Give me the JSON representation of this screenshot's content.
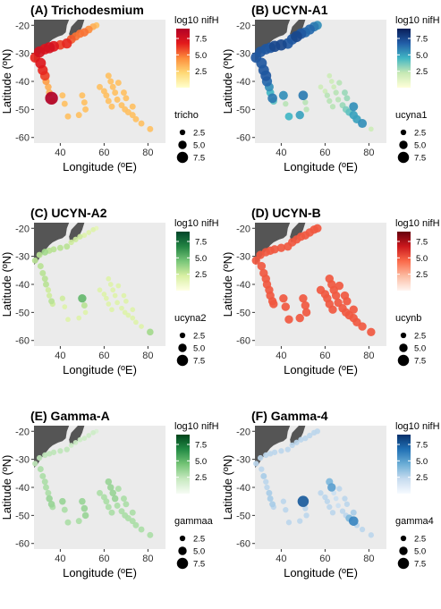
{
  "chart_data": {
    "type": "scatter",
    "xlim": [
      28,
      88
    ],
    "ylim": [
      -62,
      -18
    ],
    "x_ticks": [
      40,
      60,
      80
    ],
    "y_ticks": [
      -20,
      -30,
      -40,
      -50,
      -60
    ],
    "xlabel": "Longitude (ºE)",
    "ylabel": "Latitude (ºN)",
    "background": "#EBEBEB",
    "land_color": "#555555",
    "grid": false,
    "color_legend": {
      "title": "log10 nifH",
      "ticks": [
        "7.5",
        "5.0",
        "2.5"
      ],
      "range": [
        0,
        9
      ]
    },
    "size_legend": {
      "ticks": [
        "2.5",
        "5.0",
        "7.5"
      ]
    },
    "stations": [
      [
        28.5,
        -31.5
      ],
      [
        30.5,
        -29.5
      ],
      [
        33,
        -28.5
      ],
      [
        35,
        -28
      ],
      [
        37,
        -27.5
      ],
      [
        40,
        -27
      ],
      [
        43,
        -26.5
      ],
      [
        45,
        -25
      ],
      [
        47,
        -24
      ],
      [
        49,
        -23
      ],
      [
        51,
        -22.5
      ],
      [
        53,
        -21.5
      ],
      [
        55,
        -20.5
      ],
      [
        56.5,
        -20
      ],
      [
        31,
        -33.5
      ],
      [
        32,
        -36
      ],
      [
        33,
        -38
      ],
      [
        33.5,
        -40
      ],
      [
        34.5,
        -42
      ],
      [
        35,
        -44
      ],
      [
        36,
        -46
      ],
      [
        36.5,
        -47
      ],
      [
        41,
        -45
      ],
      [
        42,
        -48
      ],
      [
        43.5,
        -52.5
      ],
      [
        50,
        -45
      ],
      [
        51,
        -47.5
      ],
      [
        51.5,
        -50
      ],
      [
        48.5,
        -52
      ],
      [
        62,
        -38
      ],
      [
        63,
        -40
      ],
      [
        64,
        -42
      ],
      [
        65,
        -44
      ],
      [
        66,
        -46.5
      ],
      [
        68,
        -48.5
      ],
      [
        69.5,
        -50
      ],
      [
        71,
        -51
      ],
      [
        73,
        -52
      ],
      [
        74.5,
        -53.5
      ],
      [
        77,
        -55
      ],
      [
        81,
        -57
      ],
      [
        61,
        -45
      ],
      [
        62,
        -47
      ],
      [
        63.5,
        -49
      ],
      [
        58,
        -42
      ],
      [
        60,
        -43.5
      ],
      [
        69,
        -44
      ],
      [
        70,
        -46
      ],
      [
        66.5,
        -40.5
      ],
      [
        73,
        -49
      ]
    ],
    "panels": [
      {
        "title": "(A) Trichodesmium",
        "size_label": "tricho",
        "colors": [
          "#FFFFCC",
          "#FED976",
          "#FD8D3C",
          "#E31A1C",
          "#B10026"
        ],
        "values": [
          6.5,
          7.5,
          7,
          7.5,
          7,
          6,
          6.5,
          5.5,
          5,
          5,
          5,
          4.5,
          3.5,
          3,
          7,
          6.5,
          6,
          4,
          3.5,
          3.5,
          9,
          3,
          3,
          3,
          3,
          3,
          3,
          3,
          3,
          3,
          3,
          3,
          3,
          3,
          3,
          3,
          3,
          3,
          3,
          3,
          3,
          3,
          3,
          3,
          3,
          3,
          3,
          3,
          3,
          3
        ]
      },
      {
        "title": "(B) UCYN-A1",
        "size_label": "ucyna1",
        "colors": [
          "#FFFFD9",
          "#C7E9B4",
          "#41B6C4",
          "#225EA8",
          "#081D58"
        ],
        "values": [
          7,
          7,
          7,
          7,
          7.5,
          7.5,
          7,
          7,
          7.5,
          7,
          6.5,
          6.5,
          6,
          5.5,
          7,
          7,
          7,
          6.5,
          5.5,
          4.5,
          6,
          4,
          5.5,
          2.5,
          4.5,
          6,
          2.5,
          2.5,
          5,
          2,
          2,
          2,
          2.5,
          2.5,
          3,
          3.5,
          4,
          5,
          5,
          5.5,
          2,
          2.5,
          2.5,
          2.5,
          2,
          2,
          3,
          3,
          2.5,
          5.5
        ]
      },
      {
        "title": "(C) UCYN-A2",
        "size_label": "ucyna2",
        "colors": [
          "#FFFFE5",
          "#D9F0A3",
          "#78C679",
          "#238443",
          "#004529"
        ],
        "values": [
          3,
          3,
          3.5,
          3,
          3,
          3,
          3,
          2.5,
          2.5,
          2.5,
          2,
          2,
          2,
          1.5,
          3,
          3,
          3,
          3,
          2.5,
          2.5,
          3,
          2.5,
          2.5,
          2,
          2,
          5,
          3,
          2,
          2,
          2,
          2,
          2,
          2,
          2,
          2,
          2,
          2,
          2,
          2,
          2,
          3.5,
          2,
          2,
          2,
          2,
          2,
          2,
          2,
          2,
          2
        ]
      },
      {
        "title": "(D) UCYN-B",
        "size_label": "ucynb",
        "colors": [
          "#FFF5F0",
          "#FCBBA1",
          "#FB6A4A",
          "#CB181D",
          "#67000D"
        ],
        "values": [
          5,
          5,
          5,
          5,
          5,
          5,
          5,
          5,
          5,
          5,
          5,
          5,
          5,
          5,
          5,
          5,
          5,
          5,
          5,
          5,
          5,
          5,
          5,
          5,
          5,
          5,
          5,
          5,
          5,
          5,
          5,
          5,
          5,
          5,
          5,
          5,
          5,
          5,
          5,
          5,
          5,
          5,
          5,
          5,
          5,
          5,
          5,
          5,
          5,
          5
        ]
      },
      {
        "title": "(E) Gamma-A",
        "size_label": "gammaa",
        "colors": [
          "#F7FCF5",
          "#C7E9C0",
          "#74C476",
          "#238B45",
          "#00441B"
        ],
        "values": [
          2.5,
          2.5,
          2.5,
          2.5,
          2.5,
          2.5,
          2.5,
          2,
          2,
          2,
          2,
          2,
          2,
          1.5,
          3,
          3,
          3,
          3,
          3,
          3.5,
          3.5,
          3,
          3.5,
          3,
          3,
          3.5,
          3.5,
          3.5,
          3,
          3.5,
          3.5,
          3.5,
          3.5,
          3,
          3,
          3,
          3,
          3,
          3,
          3,
          3,
          3,
          3,
          3,
          3,
          3,
          3,
          3,
          3,
          3
        ]
      },
      {
        "title": "(F) Gamma-4",
        "size_label": "gamma4",
        "colors": [
          "#F7FBFF",
          "#C6DBEF",
          "#6BAED6",
          "#2171B5",
          "#08306B"
        ],
        "values": [
          2.5,
          2.5,
          2.5,
          2.5,
          2.5,
          2.5,
          2.5,
          2.5,
          2.5,
          2.5,
          2.5,
          2.5,
          2.5,
          2.5,
          2.5,
          3,
          2.5,
          2.5,
          3,
          3,
          3,
          2.5,
          2.5,
          2.5,
          2.5,
          7.5,
          2.5,
          2.5,
          2.5,
          4,
          5,
          2,
          2,
          2,
          2.5,
          2.5,
          4,
          6,
          2.5,
          2.5,
          2.5,
          2.5,
          2.5,
          2.5,
          2.5,
          2.5,
          2.5,
          2.5,
          2.5,
          3
        ]
      }
    ]
  }
}
